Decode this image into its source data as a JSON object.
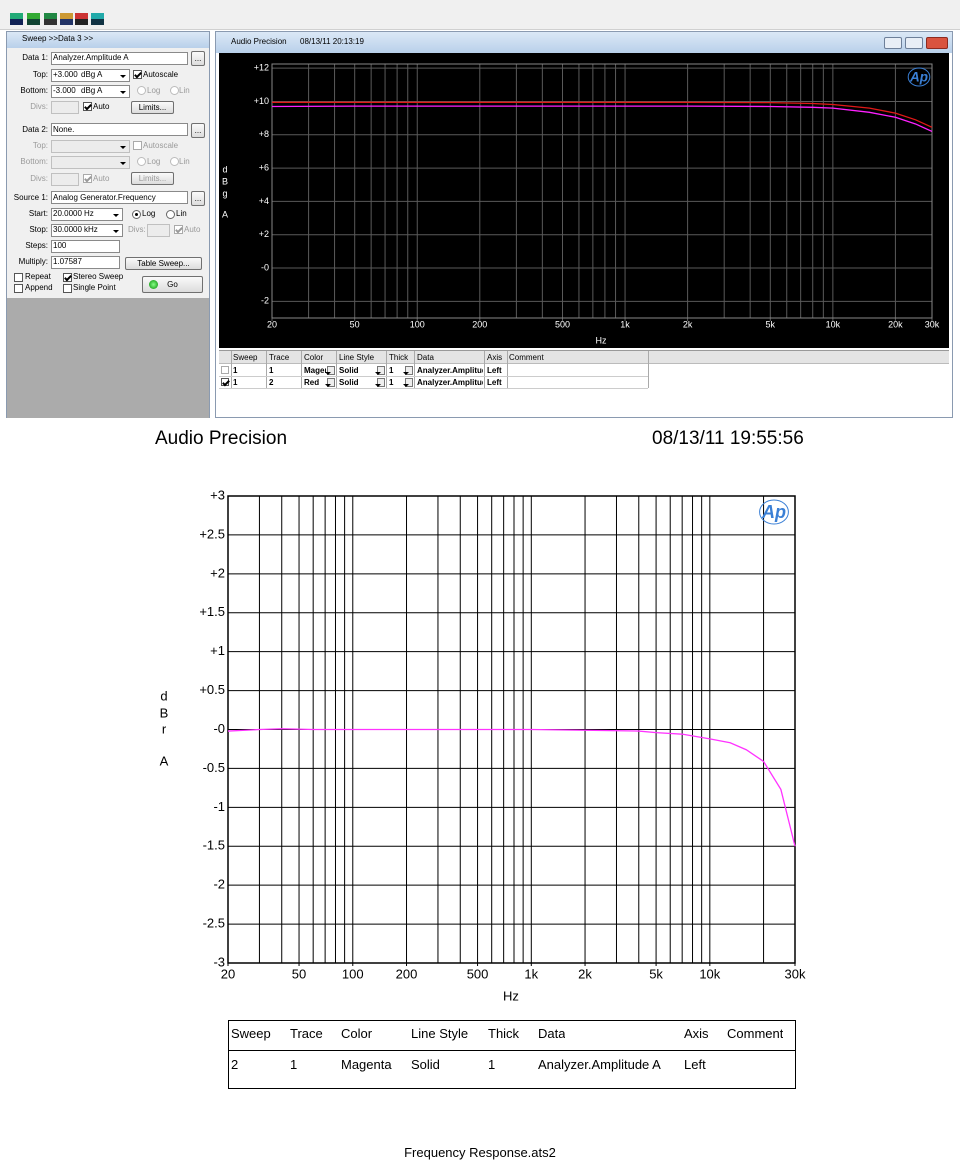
{
  "sweep_panel": {
    "title": "Sweep >>Data 3 >>",
    "data1": {
      "label": "Data 1:",
      "value": "Analyzer.Amplitude A",
      "browse": "...",
      "top_label": "Top:",
      "top": "+3.000",
      "top_unit": "dBg A",
      "autoscale": "Autoscale",
      "bottom_label": "Bottom:",
      "bottom": "-3.000",
      "bottom_unit": "dBg A",
      "log": "Log",
      "lin": "Lin",
      "divs_label": "Divs:",
      "auto": "Auto",
      "limits": "Limits..."
    },
    "data2": {
      "label": "Data 2:",
      "value": "None.",
      "browse": "...",
      "top_label": "Top:",
      "autoscale": "Autoscale",
      "bottom_label": "Bottom:",
      "log": "Log",
      "lin": "Lin",
      "divs_label": "Divs:",
      "auto": "Auto",
      "limits": "Limits..."
    },
    "source1": {
      "label": "Source 1:",
      "value": "Analog Generator.Frequency",
      "browse": "...",
      "start_label": "Start:",
      "start": "20.0000",
      "start_unit": "Hz",
      "log": "Log",
      "lin": "Lin",
      "stop_label": "Stop:",
      "stop": "30.0000",
      "stop_unit": "kHz",
      "divs_label": "Divs:",
      "auto": "Auto",
      "steps_label": "Steps:",
      "steps": "100",
      "multiply_label": "Multiply:",
      "multiply": "1.07587",
      "table_sweep": "Table Sweep..."
    },
    "options": {
      "repeat": "Repeat",
      "append": "Append",
      "stereo_sweep": "Stereo Sweep",
      "single_point": "Single Point",
      "go": "Go"
    }
  },
  "window": {
    "title": "Audio Precision",
    "timestamp": "08/13/11 20:13:19",
    "table": {
      "headers": [
        "Sweep",
        "Trace",
        "Color",
        "Line Style",
        "Thick",
        "Data",
        "Axis",
        "Comment"
      ],
      "rows": [
        [
          "1",
          "1",
          "Magenta",
          "Solid",
          "1",
          "Analyzer.Amplitude A",
          "Left"
        ],
        [
          "1",
          "2",
          "Red",
          "Solid",
          "1",
          "Analyzer.Amplitude A",
          "Left"
        ]
      ]
    }
  },
  "report": {
    "title": "Audio Precision",
    "timestamp": "08/13/11 19:55:56",
    "table": {
      "headers": [
        "Sweep",
        "Trace",
        "Color",
        "Line Style",
        "Thick",
        "Data",
        "Axis",
        "Comment"
      ],
      "rows": [
        [
          "2",
          "1",
          "Magenta",
          "Solid",
          "1",
          "Analyzer.Amplitude A",
          "Left"
        ]
      ]
    },
    "footer": "Frequency Response.ats2"
  },
  "chart_data": [
    {
      "type": "line",
      "x_scale": "log",
      "background": "#000000",
      "grid": true,
      "grid_color": "#5a5a5a",
      "text_color": "#ffffff",
      "logo": "Ap",
      "x_label": "Hz",
      "y_label": [
        "d",
        "B",
        "g",
        "A"
      ],
      "xlim": [
        20,
        30000
      ],
      "ylim": [
        -3,
        12.25
      ],
      "xticks": [
        20,
        50,
        100,
        200,
        500,
        {
          "value": 1000,
          "label": "1k"
        },
        {
          "value": 2000,
          "label": "2k"
        },
        {
          "value": 5000,
          "label": "5k"
        },
        {
          "value": 10000,
          "label": "10k"
        },
        {
          "value": 20000,
          "label": "20k"
        },
        {
          "value": 30000,
          "label": "30k"
        }
      ],
      "xgrid": [
        20,
        30,
        40,
        50,
        60,
        70,
        80,
        90,
        100,
        200,
        300,
        400,
        500,
        600,
        700,
        800,
        900,
        1000,
        2000,
        3000,
        4000,
        5000,
        6000,
        7000,
        8000,
        9000,
        10000,
        20000,
        30000
      ],
      "yticks": [
        {
          "value": 12,
          "label": "+12"
        },
        {
          "value": 10,
          "label": "+10"
        },
        {
          "value": 8,
          "label": "+8"
        },
        {
          "value": 6,
          "label": "+6"
        },
        {
          "value": 4,
          "label": "+4"
        },
        {
          "value": 2,
          "label": "+2"
        },
        {
          "value": 0,
          "label": "-0"
        },
        -2
      ],
      "x": [
        20,
        50,
        100,
        500,
        1000,
        2000,
        5000,
        8000,
        10000,
        15000,
        20000,
        25000,
        30000
      ],
      "series": [
        {
          "color": "#ff20ff",
          "values": [
            9.7,
            9.72,
            9.72,
            9.72,
            9.72,
            9.72,
            9.7,
            9.65,
            9.6,
            9.35,
            9.05,
            8.65,
            8.2
          ]
        },
        {
          "color": "#e01818",
          "values": [
            9.95,
            9.95,
            9.95,
            9.95,
            9.95,
            9.95,
            9.93,
            9.88,
            9.82,
            9.6,
            9.3,
            8.9,
            8.45
          ]
        }
      ]
    },
    {
      "type": "line",
      "x_scale": "log",
      "background": "#ffffff",
      "grid": true,
      "grid_color": "#000000",
      "text_color": "#000000",
      "logo": "Ap",
      "x_label": "Hz",
      "y_label": [
        "d",
        "B",
        "r",
        "A"
      ],
      "xlim": [
        20,
        30000
      ],
      "ylim": [
        -3,
        3
      ],
      "xticks": [
        20,
        50,
        100,
        200,
        500,
        {
          "value": 1000,
          "label": "1k"
        },
        {
          "value": 2000,
          "label": "2k"
        },
        {
          "value": 5000,
          "label": "5k"
        },
        {
          "value": 10000,
          "label": "10k"
        },
        {
          "value": 30000,
          "label": "30k"
        }
      ],
      "xgrid": [
        20,
        30,
        40,
        50,
        60,
        70,
        80,
        90,
        100,
        200,
        300,
        400,
        500,
        600,
        700,
        800,
        900,
        1000,
        2000,
        3000,
        4000,
        5000,
        6000,
        7000,
        8000,
        9000,
        10000,
        20000,
        30000
      ],
      "yticks": [
        {
          "value": 3,
          "label": "+3"
        },
        {
          "value": 2.5,
          "label": "+2.5"
        },
        {
          "value": 2,
          "label": "+2"
        },
        {
          "value": 1.5,
          "label": "+1.5"
        },
        {
          "value": 1,
          "label": "+1"
        },
        {
          "value": 0.5,
          "label": "+0.5"
        },
        {
          "value": 0,
          "label": "-0"
        },
        -0.5,
        -1,
        -1.5,
        -2,
        -2.5,
        -3
      ],
      "x": [
        20,
        25,
        30,
        40,
        60,
        100,
        1000,
        2000,
        4000,
        5000,
        7000,
        10000,
        13000,
        16000,
        20000,
        25000,
        30000
      ],
      "series": [
        {
          "color": "#ff33ff",
          "values": [
            -0.02,
            -0.01,
            0,
            0.01,
            0,
            0,
            0,
            -0.01,
            -0.02,
            -0.04,
            -0.06,
            -0.12,
            -0.17,
            -0.26,
            -0.41,
            -0.77,
            -1.5
          ]
        }
      ]
    }
  ]
}
